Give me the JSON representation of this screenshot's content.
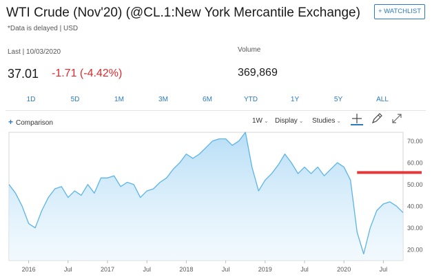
{
  "header": {
    "title": "WTI Crude (Nov'20) (@CL.1:New York Mercantile Exchange)",
    "delayed_note": "*Data is delayed | USD",
    "watchlist_label": "+ WATCHLIST"
  },
  "quote": {
    "last_label": "Last | 10/03/2020",
    "price": "37.01",
    "change": "-1.71 (-4.42%)",
    "volume_label": "Volume",
    "volume": "369,869"
  },
  "colors": {
    "accent": "#2a7ac0",
    "negative": "#e0282a",
    "line": "#5ab4ea",
    "fill_top": "#b4dcf6",
    "annotation": "#e23a3a"
  },
  "ranges": [
    "1D",
    "5D",
    "1M",
    "3M",
    "6M",
    "YTD",
    "1Y",
    "5Y",
    "ALL"
  ],
  "toolbar": {
    "comparison_label": "Comparison",
    "interval_label": "1W",
    "display_label": "Display",
    "studies_label": "Studies",
    "icons": [
      "crosshair-icon",
      "pencil-icon",
      "expand-icon"
    ]
  },
  "chart_data": {
    "type": "area",
    "x_tick_labels": [
      "2016",
      "Jul",
      "2017",
      "Jul",
      "2018",
      "Jul",
      "2019",
      "Jul",
      "2020",
      "Jul"
    ],
    "y_tick_labels": [
      "20.00",
      "30.00",
      "40.00",
      "50.00",
      "60.00",
      "70.00"
    ],
    "ylim": [
      15,
      74
    ],
    "xlim": [
      "2015-10",
      "2020-10"
    ],
    "grid": false,
    "annotation": {
      "type": "horizontal-line",
      "value": 55.5,
      "from": "2020-03",
      "to": "2020-10"
    },
    "series": [
      {
        "x": [
          "2015-10",
          "2015-11",
          "2015-12",
          "2016-01",
          "2016-02",
          "2016-03",
          "2016-04",
          "2016-05",
          "2016-06",
          "2016-07",
          "2016-08",
          "2016-09",
          "2016-10",
          "2016-11",
          "2016-12",
          "2017-01",
          "2017-02",
          "2017-03",
          "2017-04",
          "2017-05",
          "2017-06",
          "2017-07",
          "2017-08",
          "2017-09",
          "2017-10",
          "2017-11",
          "2017-12",
          "2018-01",
          "2018-02",
          "2018-03",
          "2018-04",
          "2018-05",
          "2018-06",
          "2018-07",
          "2018-08",
          "2018-09",
          "2018-10",
          "2018-11",
          "2018-12",
          "2019-01",
          "2019-02",
          "2019-03",
          "2019-04",
          "2019-05",
          "2019-06",
          "2019-07",
          "2019-08",
          "2019-09",
          "2019-10",
          "2019-11",
          "2019-12",
          "2020-01",
          "2020-02",
          "2020-03",
          "2020-04",
          "2020-05",
          "2020-06",
          "2020-07",
          "2020-08",
          "2020-09",
          "2020-10"
        ],
        "values": [
          50,
          46,
          40,
          32,
          30,
          38,
          44,
          48,
          49,
          44,
          47,
          45,
          50,
          46,
          53,
          53,
          54,
          49,
          51,
          50,
          44,
          47,
          48,
          51,
          53,
          57,
          60,
          64,
          62,
          64,
          67,
          70,
          71,
          71,
          68,
          70,
          74,
          58,
          47,
          52,
          55,
          59,
          64,
          60,
          55,
          58,
          55,
          58,
          54,
          57,
          60,
          58,
          52,
          28,
          18,
          30,
          38,
          41,
          42,
          40,
          37
        ]
      }
    ]
  }
}
